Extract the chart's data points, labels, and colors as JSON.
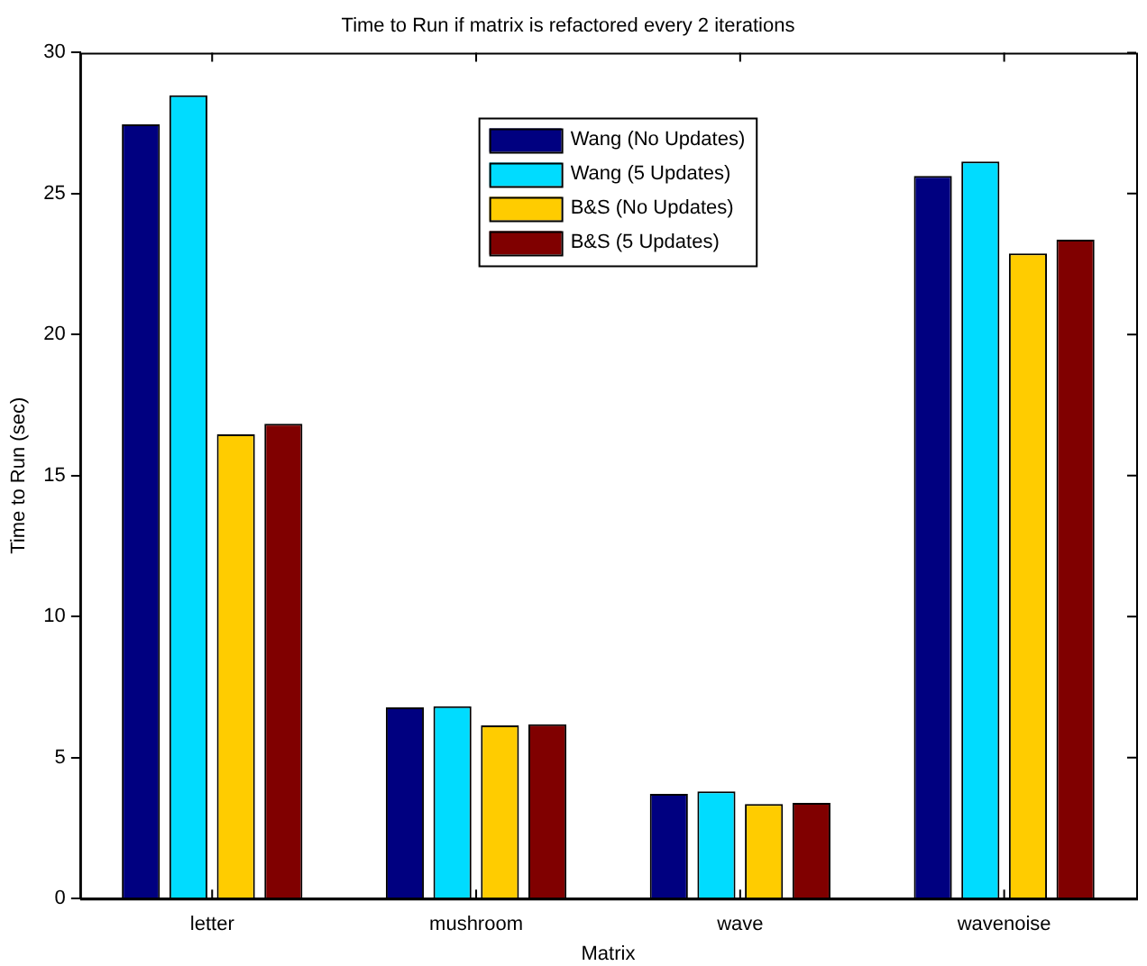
{
  "chart_data": {
    "type": "bar",
    "title": "Time to Run if matrix is refactored every 2 iterations",
    "xlabel": "Matrix",
    "ylabel": "Time to Run (sec)",
    "categories": [
      "letter",
      "mushroom",
      "wave",
      "wavenoise"
    ],
    "series": [
      {
        "name": "Wang (No Updates)",
        "color": "#000080",
        "values": [
          27.46,
          6.78,
          3.71,
          25.63
        ]
      },
      {
        "name": "Wang (5 Updates)",
        "color": "#00dcff",
        "values": [
          28.49,
          6.82,
          3.8,
          26.14
        ]
      },
      {
        "name": "B&S (No Updates)",
        "color": "#ffcc00",
        "values": [
          16.46,
          6.14,
          3.35,
          22.88
        ]
      },
      {
        "name": "B&S (5 Updates)",
        "color": "#800000",
        "values": [
          16.84,
          6.18,
          3.39,
          23.37
        ]
      }
    ],
    "ylim": [
      0,
      30
    ],
    "yticks": [
      0,
      5,
      10,
      15,
      20,
      25,
      30
    ],
    "grid": false,
    "legend": "top"
  }
}
